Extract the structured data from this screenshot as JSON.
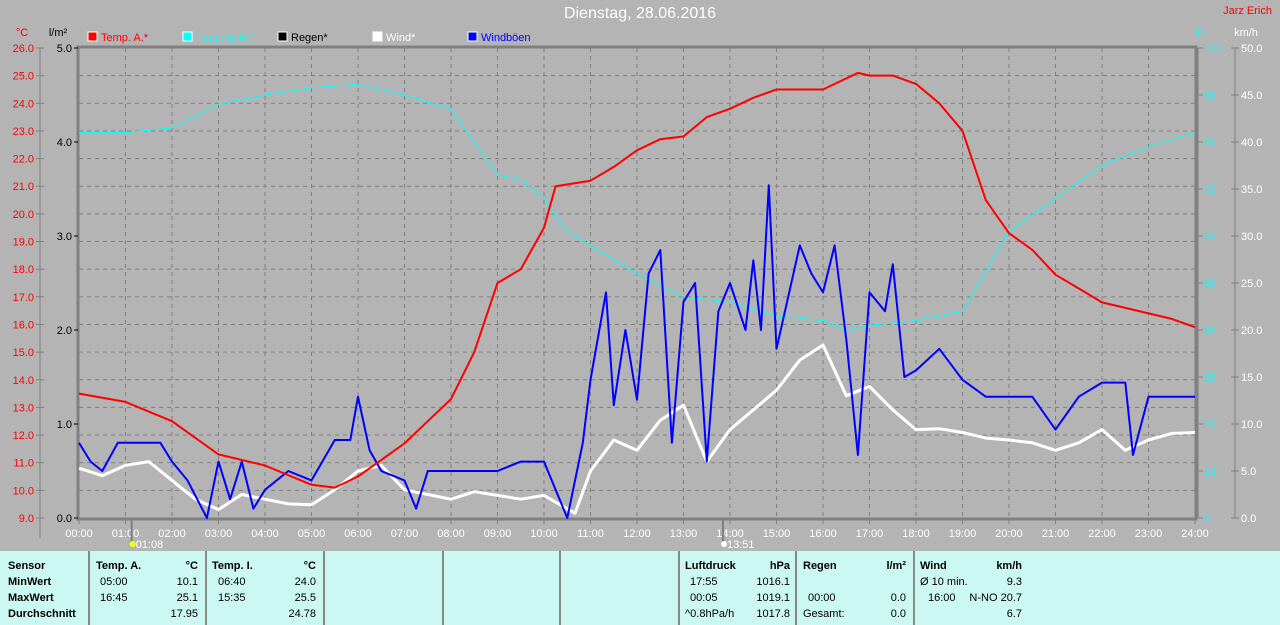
{
  "header": {
    "title": "Dienstag, 28.06.2016",
    "author": "Jarz Erich"
  },
  "legend": [
    {
      "label": "Temp. A.*",
      "color": "#ff0000"
    },
    {
      "label": "Feuchte A.*",
      "color": "#00ffff"
    },
    {
      "label": "Regen*",
      "color": "#000000"
    },
    {
      "label": "Wind*",
      "color": "#ffffff"
    },
    {
      "label": "Windböen",
      "color": "#0000ff"
    }
  ],
  "chart_data": {
    "type": "line",
    "title": "Dienstag, 28.06.2016",
    "x_range": [
      "00:00",
      "24:00"
    ],
    "x_ticks": [
      "00:00",
      "01:00",
      "02:00",
      "03:00",
      "04:00",
      "05:00",
      "06:00",
      "07:00",
      "08:00",
      "09:00",
      "10:00",
      "11:00",
      "12:00",
      "13:00",
      "14:00",
      "15:00",
      "16:00",
      "17:00",
      "18:00",
      "19:00",
      "20:00",
      "21:00",
      "22:00",
      "23:00",
      "24:00"
    ],
    "axes": {
      "temp": {
        "unit": "°C",
        "range": [
          9,
          26
        ],
        "ticks": [
          "26.0",
          "25.0",
          "24.0",
          "23.0",
          "22.0",
          "21.0",
          "20.0",
          "19.0",
          "18.0",
          "17.0",
          "16.0",
          "15.0",
          "14.0",
          "13.0",
          "12.0",
          "11.0",
          "10.0",
          "9.0"
        ]
      },
      "rain": {
        "unit": "l/m²",
        "range": [
          0,
          5
        ],
        "ticks": [
          "5.0",
          "4.0",
          "3.0",
          "2.0",
          "1.0",
          "0.0"
        ]
      },
      "humidity": {
        "unit": "%",
        "range": [
          0,
          100
        ],
        "ticks": [
          "100",
          "90",
          "80",
          "70",
          "60",
          "50",
          "40",
          "30",
          "20",
          "10",
          "0"
        ]
      },
      "wind": {
        "unit": "km/h",
        "range": [
          0,
          50
        ],
        "ticks": [
          "50.0",
          "45.0",
          "40.0",
          "35.0",
          "30.0",
          "25.0",
          "20.0",
          "15.0",
          "10.0",
          "5.0",
          "0.0"
        ]
      }
    },
    "markers": [
      {
        "label": "01:08",
        "time": "01:08"
      },
      {
        "label": "13:51",
        "time": "13:51"
      }
    ],
    "series": [
      {
        "name": "Temp. A.*",
        "axis": "temp",
        "color": "#ff0000",
        "x": [
          "00:00",
          "01:00",
          "02:00",
          "03:00",
          "04:00",
          "05:00",
          "05:30",
          "06:00",
          "07:00",
          "07:30",
          "08:00",
          "08:30",
          "09:00",
          "09:30",
          "10:00",
          "10:15",
          "11:00",
          "11:30",
          "12:00",
          "12:30",
          "13:00",
          "13:30",
          "14:00",
          "14:30",
          "15:00",
          "15:30",
          "16:00",
          "16:45",
          "17:00",
          "17:30",
          "18:00",
          "18:30",
          "19:00",
          "19:30",
          "20:00",
          "20:30",
          "21:00",
          "21:30",
          "22:00",
          "22:30",
          "23:00",
          "23:30",
          "24:00"
        ],
        "values": [
          13.5,
          13.2,
          12.5,
          11.3,
          10.9,
          10.2,
          10.1,
          10.5,
          11.7,
          12.5,
          13.3,
          15.0,
          17.5,
          18.0,
          19.5,
          21.0,
          21.2,
          21.7,
          22.3,
          22.7,
          22.8,
          23.5,
          23.8,
          24.2,
          24.5,
          24.5,
          24.5,
          25.1,
          25.0,
          25.0,
          24.7,
          24.0,
          23.0,
          20.5,
          19.3,
          18.7,
          17.8,
          17.3,
          16.8,
          16.6,
          16.4,
          16.2,
          15.9
        ]
      },
      {
        "name": "Feuchte A.*",
        "axis": "humidity",
        "color": "#00ffff",
        "x": [
          "00:00",
          "01:00",
          "02:00",
          "03:00",
          "04:00",
          "05:00",
          "06:00",
          "07:00",
          "08:00",
          "09:00",
          "09:30",
          "10:00",
          "10:30",
          "11:00",
          "12:00",
          "13:00",
          "14:00",
          "15:00",
          "16:00",
          "16:30",
          "17:00",
          "18:00",
          "19:00",
          "20:00",
          "21:00",
          "22:00",
          "23:00",
          "24:00"
        ],
        "values": [
          82,
          82,
          83,
          88,
          90,
          91.5,
          92.3,
          90,
          87,
          73,
          72,
          68,
          61,
          58,
          52,
          47,
          46,
          43,
          42,
          40,
          41,
          42,
          44,
          61,
          68,
          75,
          79,
          82
        ]
      },
      {
        "name": "Wind*",
        "axis": "wind",
        "color": "#ffffff",
        "x": [
          "00:00",
          "00:30",
          "01:00",
          "01:30",
          "02:00",
          "02:30",
          "03:00",
          "03:30",
          "04:00",
          "04:30",
          "05:00",
          "05:30",
          "06:00",
          "06:30",
          "07:00",
          "07:30",
          "08:00",
          "08:30",
          "09:00",
          "09:30",
          "10:00",
          "10:40",
          "11:00",
          "11:30",
          "12:00",
          "12:30",
          "13:00",
          "13:30",
          "14:00",
          "14:30",
          "15:00",
          "15:30",
          "16:00",
          "16:30",
          "17:00",
          "17:30",
          "18:00",
          "18:30",
          "19:00",
          "19:30",
          "20:00",
          "20:30",
          "21:00",
          "21:30",
          "22:00",
          "22:30",
          "23:00",
          "23:30",
          "24:00"
        ],
        "values": [
          5.3,
          4.5,
          5.6,
          6.0,
          4.0,
          2.0,
          0.9,
          2.5,
          2.0,
          1.5,
          1.4,
          3.0,
          5.0,
          5.6,
          3.0,
          2.5,
          2.0,
          2.8,
          2.4,
          2.0,
          2.4,
          0.5,
          5.0,
          8.3,
          7.2,
          10.4,
          12.0,
          6.0,
          9.4,
          11.5,
          13.6,
          16.8,
          18.4,
          13.0,
          14.0,
          11.5,
          9.4,
          9.5,
          9.1,
          8.5,
          8.3,
          8.0,
          7.2,
          8.0,
          9.4,
          7.2,
          8.3,
          9.0,
          9.1
        ]
      },
      {
        "name": "Windböen",
        "axis": "wind",
        "color": "#0000ff",
        "x": [
          "00:00",
          "00:15",
          "00:30",
          "00:50",
          "01:00",
          "01:45",
          "02:00",
          "02:20",
          "02:45",
          "03:00",
          "03:15",
          "03:30",
          "03:45",
          "04:00",
          "04:30",
          "05:00",
          "05:30",
          "05:50",
          "06:00",
          "06:15",
          "06:30",
          "07:00",
          "07:15",
          "07:30",
          "08:00",
          "08:30",
          "09:00",
          "09:30",
          "10:00",
          "10:30",
          "10:50",
          "11:00",
          "11:20",
          "11:30",
          "11:45",
          "12:00",
          "12:15",
          "12:30",
          "12:45",
          "13:00",
          "13:15",
          "13:30",
          "13:45",
          "14:00",
          "14:20",
          "14:30",
          "14:40",
          "14:50",
          "15:00",
          "15:30",
          "15:45",
          "16:00",
          "16:15",
          "16:30",
          "16:45",
          "17:00",
          "17:20",
          "17:30",
          "17:45",
          "18:00",
          "18:30",
          "19:00",
          "19:30",
          "20:00",
          "20:30",
          "21:00",
          "21:30",
          "22:00",
          "22:30",
          "22:40",
          "23:00",
          "23:30",
          "24:00"
        ],
        "values": [
          8,
          6,
          5,
          8,
          8,
          8,
          6,
          4,
          0,
          6,
          2,
          6,
          1,
          3,
          5,
          4,
          8.3,
          8.3,
          12.9,
          7.2,
          5,
          4,
          1,
          5,
          5,
          5,
          5,
          6,
          6,
          0,
          8,
          14.7,
          24,
          12,
          20,
          12.6,
          26,
          28.5,
          8,
          23,
          25,
          6,
          22,
          25,
          20,
          27.4,
          20,
          35.4,
          18,
          29,
          26,
          24,
          29,
          19,
          6.7,
          24,
          22,
          27,
          15,
          15.7,
          18,
          14.7,
          12.9,
          12.9,
          12.9,
          9.4,
          12.9,
          14.4,
          14.4,
          6.7,
          12.9,
          12.9,
          12.9
        ]
      }
    ]
  },
  "stats": {
    "sensor": {
      "header": "Sensor",
      "rows": [
        "MinWert",
        "MaxWert",
        "Durchschnitt"
      ]
    },
    "temp_a": {
      "header": "Temp. A.",
      "unit": "°C",
      "min_time": "05:00",
      "min": "10.1",
      "max_time": "16:45",
      "max": "25.1",
      "avg": "17.95"
    },
    "temp_i": {
      "header": "Temp. I.",
      "unit": "°C",
      "min_time": "06:40",
      "min": "24.0",
      "max_time": "15:35",
      "max": "25.5",
      "avg": "24.78"
    },
    "pressure": {
      "header": "Luftdruck",
      "unit": "hPa",
      "min_time": "17:55",
      "min": "1016.1",
      "max_time": "00:05",
      "max": "1019.1",
      "trend": "^0.8hPa/h",
      "avg": "1017.8"
    },
    "rain": {
      "header": "Regen",
      "unit": "l/m²",
      "max_time": "00:00",
      "max": "0.0",
      "total_label": "Gesamt:",
      "total": "0.0"
    },
    "wind": {
      "header": "Wind",
      "unit": "km/h",
      "avg10_label": "Ø 10 min.",
      "avg10": "9.3",
      "max_time": "16:00",
      "max": "N-NO 20.7",
      "avg": "6.7"
    }
  }
}
